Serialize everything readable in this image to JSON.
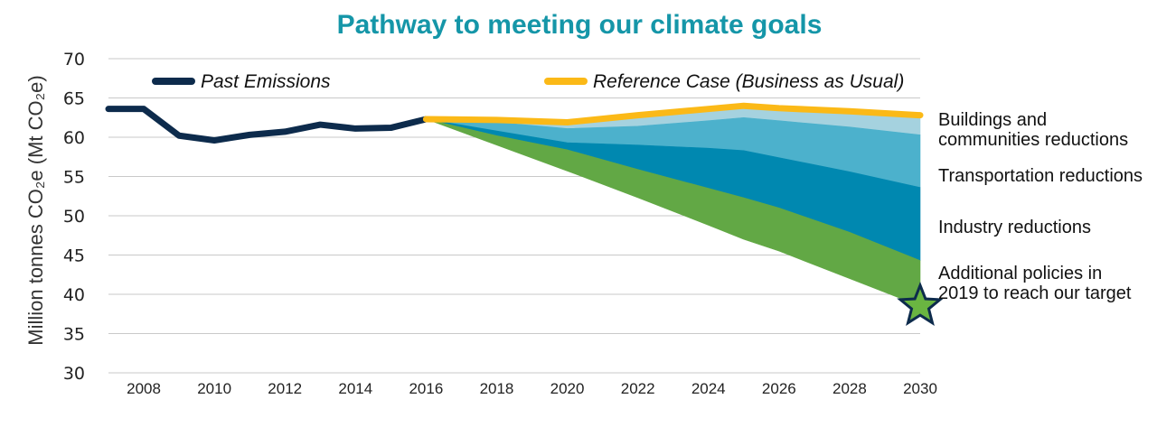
{
  "chart_data": {
    "type": "area",
    "title": "Pathway to meeting our climate goals",
    "ylabel": "Million tonnes CO₂e (Mt CO₂e)",
    "xlabel": "",
    "ylim": [
      30,
      70
    ],
    "xlim": [
      2007,
      2030
    ],
    "yticks": [
      30,
      35,
      40,
      45,
      50,
      55,
      60,
      65,
      70
    ],
    "xticks": [
      2008,
      2010,
      2012,
      2014,
      2016,
      2018,
      2020,
      2022,
      2024,
      2026,
      2028,
      2030
    ],
    "grid": "horizontal",
    "legend_placement": "top",
    "series": [
      {
        "name": "Past Emissions",
        "kind": "line",
        "color": "#0d2b4c",
        "x": [
          2007,
          2008,
          2009,
          2010,
          2011,
          2012,
          2013,
          2014,
          2015,
          2016
        ],
        "values": [
          63.6,
          63.6,
          60.2,
          59.6,
          60.3,
          60.7,
          61.6,
          61.1,
          61.2,
          62.3
        ]
      },
      {
        "name": "Reference Case (Business as Usual)",
        "kind": "line",
        "color": "#fbb917",
        "x": [
          2016,
          2018,
          2020,
          2022,
          2024,
          2025,
          2026,
          2028,
          2030
        ],
        "values": [
          62.3,
          62.2,
          61.9,
          62.8,
          63.6,
          64.0,
          63.7,
          63.3,
          62.8
        ]
      }
    ],
    "areas": [
      {
        "name": "Buildings and communities reductions",
        "color": "#a5d2df",
        "x": [
          2016,
          2018,
          2020,
          2022,
          2024,
          2025,
          2026,
          2028,
          2030
        ],
        "upper": [
          62.3,
          62.2,
          61.9,
          62.8,
          63.6,
          64.0,
          63.7,
          63.3,
          62.8
        ],
        "lower": [
          62.3,
          61.9,
          61.1,
          61.4,
          62.1,
          62.5,
          62.1,
          61.3,
          60.3
        ]
      },
      {
        "name": "Transportation reductions",
        "color": "#4cb1cc",
        "x": [
          2016,
          2018,
          2020,
          2022,
          2024,
          2025,
          2026,
          2028,
          2030
        ],
        "upper": [
          62.3,
          61.9,
          61.1,
          61.4,
          62.1,
          62.5,
          62.1,
          61.3,
          60.3
        ],
        "lower": [
          62.3,
          60.8,
          59.3,
          59.0,
          58.6,
          58.3,
          57.4,
          55.6,
          53.6
        ]
      },
      {
        "name": "Industry reductions",
        "color": "#0088b0",
        "x": [
          2016,
          2018,
          2020,
          2022,
          2024,
          2025,
          2026,
          2028,
          2030
        ],
        "upper": [
          62.3,
          60.8,
          59.3,
          59.0,
          58.6,
          58.3,
          57.4,
          55.6,
          53.6
        ],
        "lower": [
          62.3,
          60.2,
          58.4,
          55.9,
          53.5,
          52.3,
          51.0,
          47.9,
          44.3
        ]
      },
      {
        "name": "Additional policies in 2019 to reach our target",
        "color": "#62a845",
        "x": [
          2016,
          2018,
          2020,
          2022,
          2024,
          2025,
          2026,
          2028,
          2030
        ],
        "upper": [
          62.3,
          60.2,
          58.4,
          55.9,
          53.5,
          52.3,
          51.0,
          47.9,
          44.3
        ],
        "lower": [
          62.3,
          59.0,
          55.7,
          52.3,
          48.8,
          47.0,
          45.5,
          42.0,
          38.5
        ]
      }
    ],
    "target_marker": {
      "x": 2030,
      "y": 38.5,
      "shape": "star",
      "fill": "#6ab541",
      "stroke": "#0d2b4c"
    },
    "legend": [
      {
        "label": "Past Emissions",
        "color": "#0d2b4c"
      },
      {
        "label": "Reference Case (Business as Usual)",
        "color": "#fbb917"
      }
    ],
    "annotations": [
      {
        "lines": [
          "Buildings and",
          "communities reductions"
        ]
      },
      {
        "lines": [
          "Transportation reductions"
        ]
      },
      {
        "lines": [
          "Industry reductions"
        ]
      },
      {
        "lines": [
          "Additional policies in",
          "2019 to reach our target"
        ]
      }
    ]
  }
}
